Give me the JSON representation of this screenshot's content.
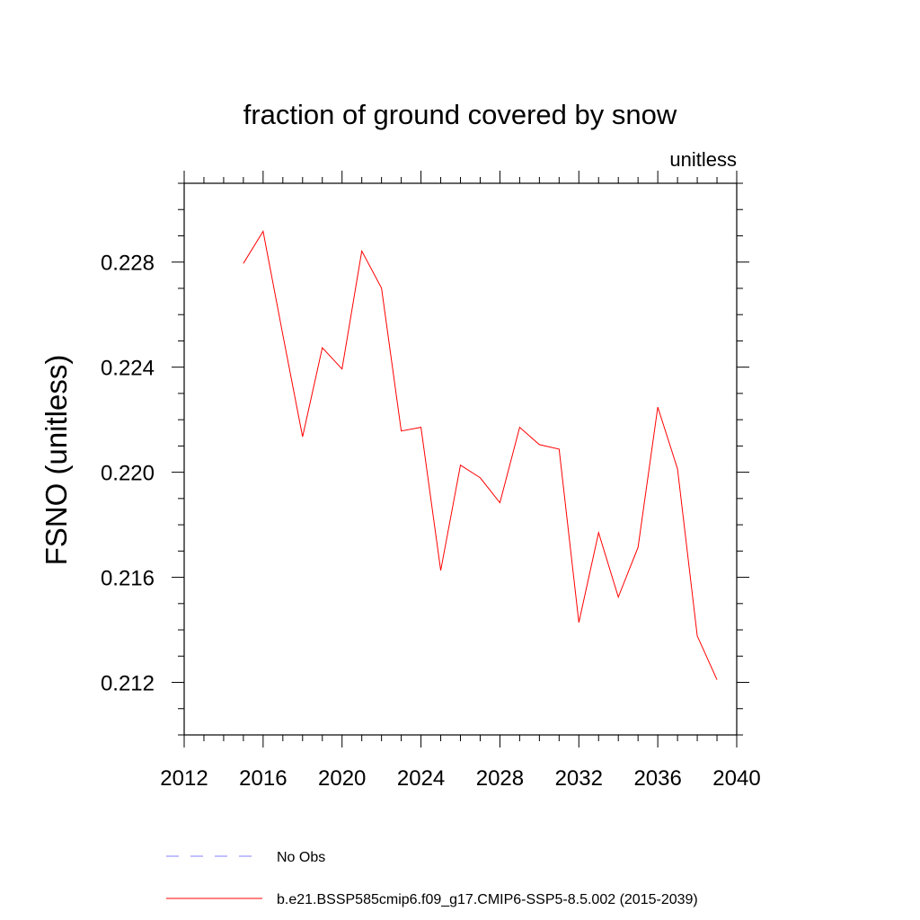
{
  "chart_data": {
    "type": "line",
    "title": "fraction of ground covered by snow",
    "units_label": "unitless",
    "xlabel": "",
    "ylabel": "FSNO  (unitless)",
    "xlim": [
      2012,
      2040
    ],
    "ylim": [
      0.21,
      0.231
    ],
    "x_ticks": [
      2012,
      2016,
      2020,
      2024,
      2028,
      2032,
      2036,
      2040
    ],
    "x_tick_labels": [
      "2012",
      "2016",
      "2020",
      "2024",
      "2028",
      "2032",
      "2036",
      "2040"
    ],
    "y_ticks": [
      0.212,
      0.216,
      0.22,
      0.224,
      0.228
    ],
    "y_tick_labels": [
      "0.212",
      "0.216",
      "0.220",
      "0.224",
      "0.228"
    ],
    "grid": false,
    "legend_position": "bottom",
    "series": [
      {
        "name": "b.e21.BSSP585cmip6.f09_g17.CMIP6-SSP5-8.5.002 (2015-2039)",
        "color": "#ff0000",
        "style": "solid",
        "x": [
          2015,
          2016,
          2017,
          2018,
          2019,
          2020,
          2021,
          2022,
          2023,
          2024,
          2025,
          2026,
          2027,
          2028,
          2029,
          2030,
          2031,
          2032,
          2033,
          2034,
          2035,
          2036,
          2037,
          2038,
          2039
        ],
        "values": [
          0.22795,
          0.22917,
          0.22523,
          0.22135,
          0.22474,
          0.22393,
          0.22842,
          0.22701,
          0.22157,
          0.22171,
          0.21626,
          0.22027,
          0.21979,
          0.21884,
          0.22171,
          0.22105,
          0.22088,
          0.21428,
          0.2177,
          0.21525,
          0.21714,
          0.22248,
          0.22013,
          0.21377,
          0.2121
        ]
      }
    ],
    "legend": [
      {
        "label": "No Obs",
        "color": "#8080ff",
        "style": "dashed"
      },
      {
        "label": "b.e21.BSSP585cmip6.f09_g17.CMIP6-SSP5-8.5.002 (2015-2039)",
        "color": "#ff0000",
        "style": "solid"
      }
    ]
  }
}
